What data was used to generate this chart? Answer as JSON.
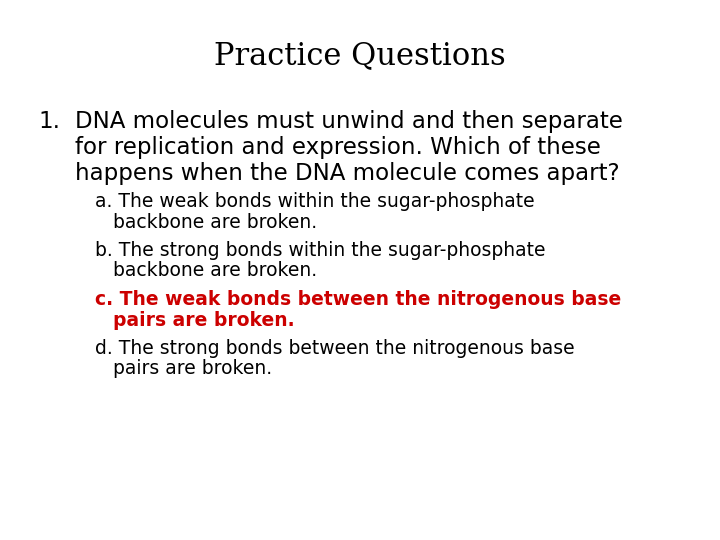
{
  "title": "Practice Questions",
  "background_color": "#ffffff",
  "title_fontsize": 22,
  "title_font": "DejaVu Serif",
  "q_number": "1.",
  "q_line1": "DNA molecules must unwind and then separate",
  "q_line2": "for replication and expression. Which of these",
  "q_line3": "happens when the DNA molecule comes apart?",
  "question_fontsize": 16.5,
  "question_font": "DejaVu Sans",
  "answers": [
    {
      "line1": "a. The weak bonds within the sugar-phosphate",
      "line2": "backbone are broken.",
      "color": "#000000",
      "bold": false,
      "fontsize": 13.5
    },
    {
      "line1": "b. The strong bonds within the sugar-phosphate",
      "line2": "backbone are broken.",
      "color": "#000000",
      "bold": false,
      "fontsize": 13.5
    },
    {
      "line1": "c. The weak bonds between the nitrogenous base",
      "line2": "pairs are broken.",
      "color": "#cc0000",
      "bold": true,
      "fontsize": 13.5
    },
    {
      "line1": "d. The strong bonds between the nitrogenous base",
      "line2": "pairs are broken.",
      "color": "#000000",
      "bold": false,
      "fontsize": 13.5
    }
  ],
  "answer_font": "DejaVu Sans",
  "fig_width": 7.2,
  "fig_height": 5.4,
  "dpi": 100
}
